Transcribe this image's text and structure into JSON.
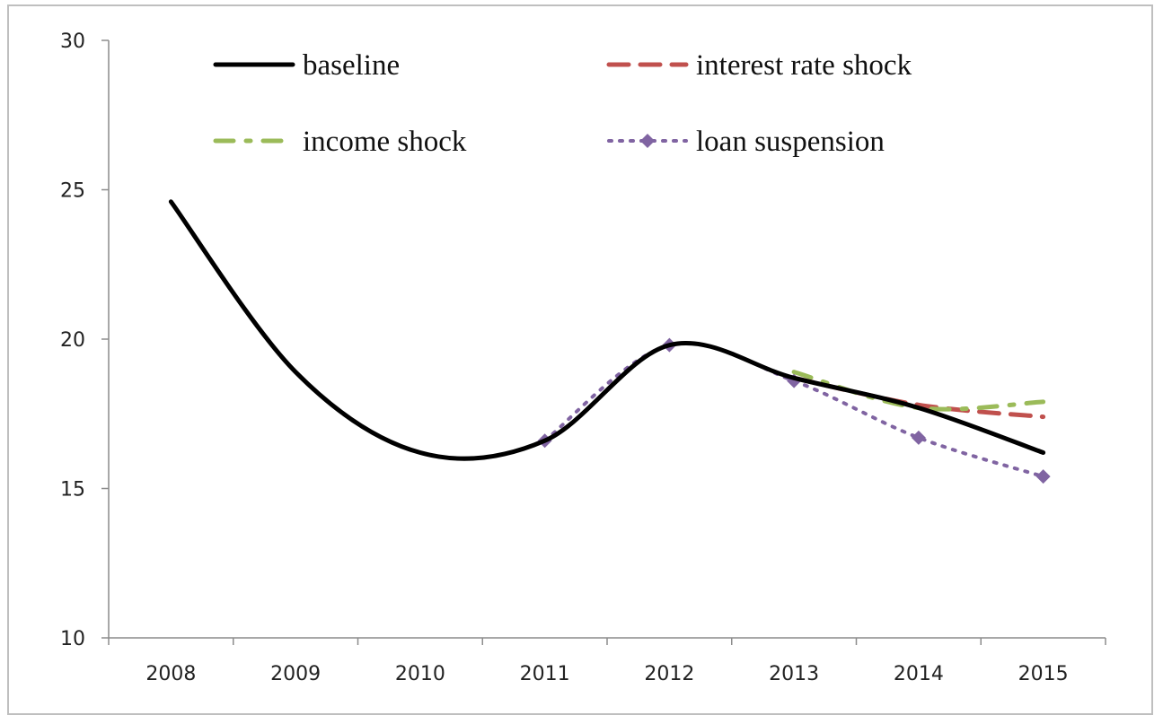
{
  "chart_data": {
    "type": "line",
    "title": "",
    "xlabel": "",
    "ylabel": "",
    "categories": [
      "2008",
      "2009",
      "2010",
      "2011",
      "2012",
      "2013",
      "2014",
      "2015"
    ],
    "ylim": [
      10,
      30
    ],
    "yticks": [
      "10",
      "15",
      "20",
      "25",
      "30"
    ],
    "grid": false,
    "legend_position": "top",
    "series": [
      {
        "name": "baseline",
        "color": "#000000",
        "style": "solid-smooth",
        "values": [
          24.6,
          18.9,
          16.2,
          16.6,
          19.8,
          18.7,
          17.7,
          16.2
        ]
      },
      {
        "name": "interest rate shock",
        "color": "#c0504d",
        "style": "long-dash",
        "values": [
          null,
          null,
          null,
          null,
          null,
          18.7,
          17.8,
          17.4
        ]
      },
      {
        "name": "income shock",
        "color": "#9bbb59",
        "style": "dash-dot",
        "values": [
          null,
          null,
          null,
          null,
          null,
          18.9,
          17.7,
          17.9
        ]
      },
      {
        "name": "loan suspension",
        "color": "#8064a2",
        "style": "dotted-diamond",
        "values": [
          null,
          null,
          null,
          16.6,
          19.8,
          18.6,
          16.7,
          15.4
        ]
      }
    ]
  }
}
